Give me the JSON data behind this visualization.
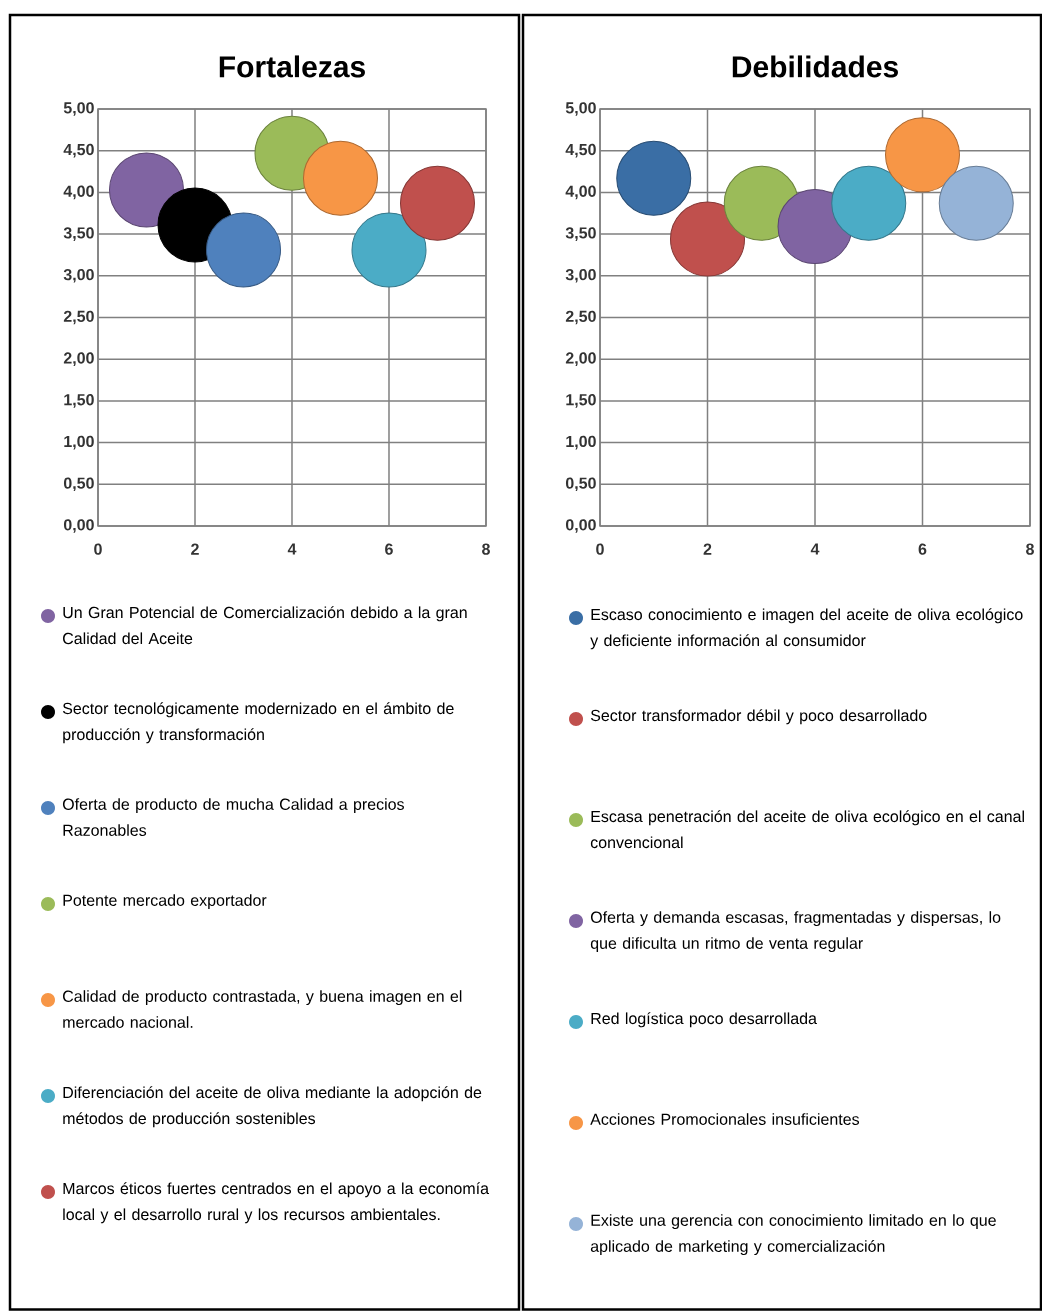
{
  "chart_data": [
    {
      "type": "bubble",
      "title": "Fortalezas",
      "xlim": [
        0,
        8
      ],
      "xticks": [
        0,
        2,
        4,
        6,
        8
      ],
      "ylim": [
        0,
        5
      ],
      "yticks": [
        {
          "value": 0,
          "label": "0,00"
        },
        {
          "value": 0.5,
          "label": "0,50"
        },
        {
          "value": 1,
          "label": "1,00"
        },
        {
          "value": 1.5,
          "label": "1,50"
        },
        {
          "value": 2,
          "label": "2,00"
        },
        {
          "value": 2.5,
          "label": "2,50"
        },
        {
          "value": 3,
          "label": "3,00"
        },
        {
          "value": 3.5,
          "label": "3,50"
        },
        {
          "value": 4,
          "label": "4,00"
        },
        {
          "value": 4.5,
          "label": "4,50"
        },
        {
          "value": 5,
          "label": "5,00"
        }
      ],
      "grid": true,
      "legend": "bottom",
      "series": [
        {
          "name": "Un Gran Potencial de Comercialización debido a la gran Calidad del Aceite",
          "color": "#8064a2",
          "x": [
            1
          ],
          "values": [
            4.03
          ],
          "sizes": [
            1
          ]
        },
        {
          "name": "Sector tecnológicamente modernizado en el ámbito de producción y transformación",
          "color": "#000000",
          "x": [
            2
          ],
          "values": [
            3.61
          ],
          "sizes": [
            1
          ]
        },
        {
          "name": "Oferta de producto de mucha Calidad a precios Razonables",
          "color": "#4f81bd",
          "x": [
            3
          ],
          "values": [
            3.31
          ],
          "sizes": [
            1
          ]
        },
        {
          "name": "Potente mercado exportador",
          "color": "#9bbb59",
          "x": [
            4
          ],
          "values": [
            4.47
          ],
          "sizes": [
            1
          ]
        },
        {
          "name": "Calidad de producto contrastada, y buena imagen en el mercado nacional.",
          "color": "#f79646",
          "x": [
            5
          ],
          "values": [
            4.17
          ],
          "sizes": [
            1
          ]
        },
        {
          "name": "Diferenciación del aceite de oliva mediante la adopción de métodos de producción sostenibles",
          "color": "#4bacc6",
          "x": [
            6
          ],
          "values": [
            3.31
          ],
          "sizes": [
            1
          ]
        },
        {
          "name": "Marcos éticos fuertes centrados en el apoyo a la economía local y el desarrollo rural y los recursos ambientales.",
          "color": "#c0504d",
          "x": [
            7
          ],
          "values": [
            3.87
          ],
          "sizes": [
            1
          ]
        }
      ]
    },
    {
      "type": "bubble",
      "title": "Debilidades",
      "xlim": [
        0,
        8
      ],
      "xticks": [
        0,
        2,
        4,
        6,
        8
      ],
      "ylim": [
        0,
        5
      ],
      "yticks": [
        {
          "value": 0,
          "label": "0,00"
        },
        {
          "value": 0.5,
          "label": "0,50"
        },
        {
          "value": 1,
          "label": "1,00"
        },
        {
          "value": 1.5,
          "label": "1,50"
        },
        {
          "value": 2,
          "label": "2,00"
        },
        {
          "value": 2.5,
          "label": "2,50"
        },
        {
          "value": 3,
          "label": "3,00"
        },
        {
          "value": 3.5,
          "label": "3,50"
        },
        {
          "value": 4,
          "label": "4,00"
        },
        {
          "value": 4.5,
          "label": "4,50"
        },
        {
          "value": 5,
          "label": "5,00"
        }
      ],
      "grid": true,
      "legend": "bottom",
      "series": [
        {
          "name": "Escaso conocimiento e imagen del aceite de oliva ecológico y deficiente información al consumidor",
          "color": "#3a6ea5",
          "x": [
            1
          ],
          "values": [
            4.17
          ],
          "sizes": [
            1
          ]
        },
        {
          "name": "Sector transformador débil y poco desarrollado",
          "color": "#c0504d",
          "x": [
            2
          ],
          "values": [
            3.44
          ],
          "sizes": [
            1
          ]
        },
        {
          "name": "Escasa penetración del aceite de oliva ecológico en el canal convencional",
          "color": "#9bbb59",
          "x": [
            3
          ],
          "values": [
            3.87
          ],
          "sizes": [
            1
          ]
        },
        {
          "name": "Oferta y demanda escasas, fragmentadas y dispersas, lo que dificulta un ritmo de venta regular",
          "color": "#8064a2",
          "x": [
            4
          ],
          "values": [
            3.59
          ],
          "sizes": [
            1
          ]
        },
        {
          "name": "Red logística poco desarrollada",
          "color": "#4bacc6",
          "x": [
            5
          ],
          "values": [
            3.87
          ],
          "sizes": [
            1
          ]
        },
        {
          "name": "Acciones Promocionales insuficientes",
          "color": "#f79646",
          "x": [
            6
          ],
          "values": [
            4.45
          ],
          "sizes": [
            1
          ]
        },
        {
          "name": "Existe una gerencia con conocimiento limitado en lo que aplicado de marketing y comercialización",
          "color": "#95b3d7",
          "x": [
            7
          ],
          "values": [
            3.87
          ],
          "sizes": [
            1
          ]
        }
      ]
    }
  ]
}
